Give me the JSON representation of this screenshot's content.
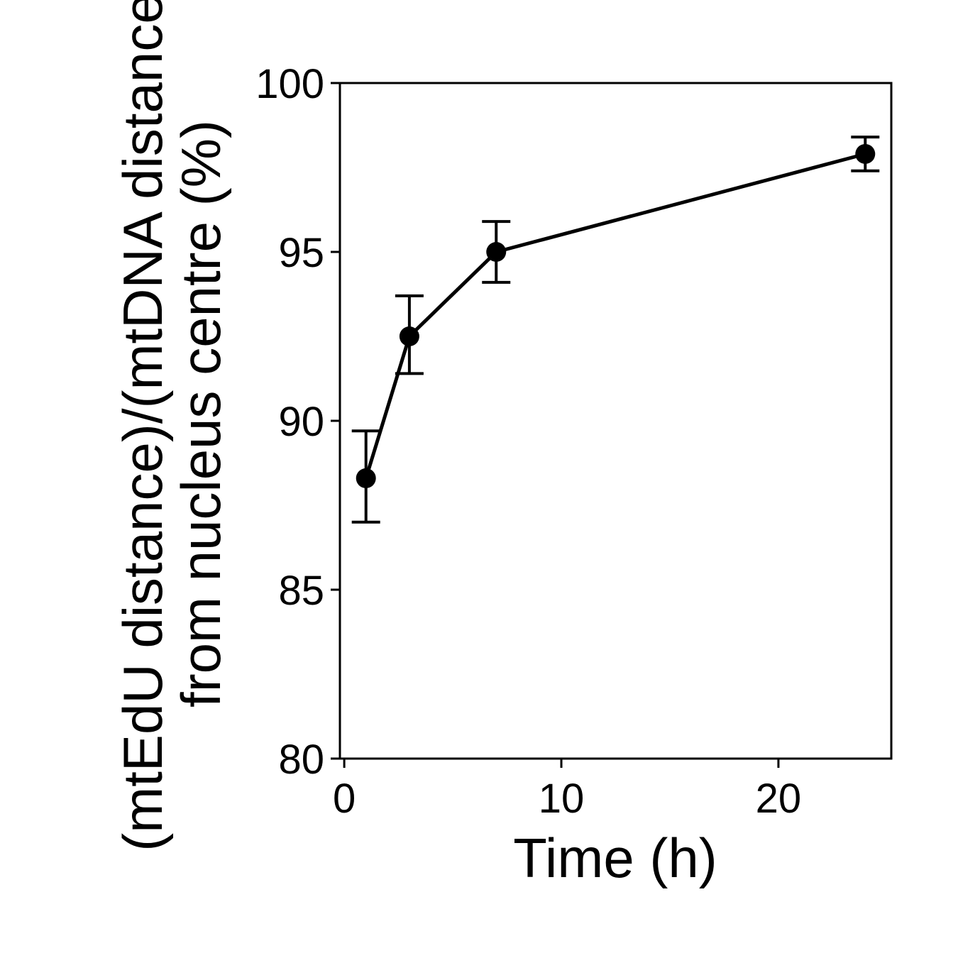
{
  "chart_data": {
    "type": "line",
    "xlabel": "Time (h)",
    "ylabel_lines": [
      "(mtEdU distance)/(mtDNA distance",
      "from nucleus centre (%)"
    ],
    "xlim": [
      -0.2,
      25.2
    ],
    "ylim": [
      80,
      100
    ],
    "xticks": [
      0,
      10,
      20
    ],
    "yticks": [
      80,
      85,
      90,
      95,
      100
    ],
    "grid": false,
    "legend": "none",
    "color": "#000000",
    "series": [
      {
        "x": [
          1,
          3,
          7,
          24
        ],
        "y": [
          88.3,
          92.5,
          95.0,
          97.9
        ],
        "err_low": [
          87.0,
          91.4,
          94.1,
          97.4
        ],
        "err_high": [
          89.7,
          93.7,
          95.9,
          98.4
        ]
      }
    ]
  }
}
